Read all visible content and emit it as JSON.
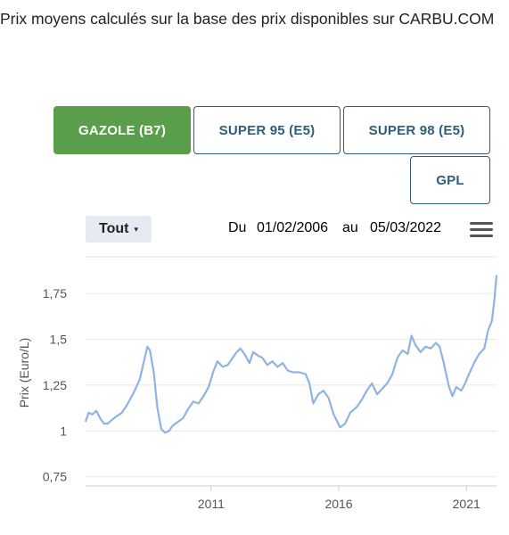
{
  "intro_text": "Prix moyens calculés sur la base des prix disponibles sur CARBU.COM",
  "fuel_tabs": [
    {
      "label": "GAZOLE (B7)",
      "active": true
    },
    {
      "label": "SUPER 95 (E5)",
      "active": false
    },
    {
      "label": "SUPER 98 (E5)",
      "active": false
    },
    {
      "label": "GPL",
      "active": false
    }
  ],
  "range_selector": {
    "label": "Tout",
    "caret": "▾"
  },
  "date_range": {
    "from_label": "Du",
    "from": "01/02/2006",
    "to_label": "au",
    "to": "05/03/2022"
  },
  "colors": {
    "line": "#8db4e2",
    "active_tab": "#5a9e4b",
    "tab_border": "#2f5e7a",
    "grid": "#e6e6e6"
  },
  "chart_data": {
    "type": "line",
    "title": "",
    "xlabel": "",
    "ylabel": "Prix (Euro/L)",
    "xlim": [
      2006.08,
      2022.18
    ],
    "ylim": [
      0.7,
      1.95
    ],
    "y_ticks": [
      0.75,
      1,
      1.25,
      1.5,
      1.75
    ],
    "y_tick_labels": [
      "0,75",
      "1",
      "1,25",
      "1,5",
      "1,75"
    ],
    "x_ticks": [
      2011,
      2016,
      2021
    ],
    "x_tick_labels": [
      "2011",
      "2016",
      "2021"
    ],
    "grid": true,
    "series": [
      {
        "values": [
          [
            2006.08,
            1.05
          ],
          [
            2006.2,
            1.1
          ],
          [
            2006.35,
            1.09
          ],
          [
            2006.5,
            1.11
          ],
          [
            2006.65,
            1.07
          ],
          [
            2006.8,
            1.04
          ],
          [
            2006.95,
            1.04
          ],
          [
            2007.1,
            1.06
          ],
          [
            2007.3,
            1.08
          ],
          [
            2007.5,
            1.1
          ],
          [
            2007.7,
            1.14
          ],
          [
            2007.85,
            1.18
          ],
          [
            2008.0,
            1.22
          ],
          [
            2008.2,
            1.28
          ],
          [
            2008.35,
            1.37
          ],
          [
            2008.5,
            1.46
          ],
          [
            2008.6,
            1.44
          ],
          [
            2008.75,
            1.32
          ],
          [
            2008.9,
            1.12
          ],
          [
            2009.05,
            1.01
          ],
          [
            2009.2,
            0.99
          ],
          [
            2009.35,
            1.0
          ],
          [
            2009.5,
            1.03
          ],
          [
            2009.7,
            1.05
          ],
          [
            2009.9,
            1.07
          ],
          [
            2010.1,
            1.12
          ],
          [
            2010.3,
            1.16
          ],
          [
            2010.5,
            1.15
          ],
          [
            2010.7,
            1.19
          ],
          [
            2010.9,
            1.24
          ],
          [
            2011.1,
            1.33
          ],
          [
            2011.25,
            1.38
          ],
          [
            2011.45,
            1.35
          ],
          [
            2011.65,
            1.36
          ],
          [
            2011.85,
            1.4
          ],
          [
            2012.0,
            1.43
          ],
          [
            2012.15,
            1.45
          ],
          [
            2012.35,
            1.41
          ],
          [
            2012.5,
            1.37
          ],
          [
            2012.65,
            1.43
          ],
          [
            2012.85,
            1.41
          ],
          [
            2013.0,
            1.4
          ],
          [
            2013.2,
            1.36
          ],
          [
            2013.4,
            1.38
          ],
          [
            2013.6,
            1.35
          ],
          [
            2013.8,
            1.37
          ],
          [
            2014.0,
            1.33
          ],
          [
            2014.2,
            1.32
          ],
          [
            2014.45,
            1.32
          ],
          [
            2014.7,
            1.31
          ],
          [
            2014.85,
            1.26
          ],
          [
            2015.0,
            1.15
          ],
          [
            2015.2,
            1.2
          ],
          [
            2015.4,
            1.22
          ],
          [
            2015.6,
            1.18
          ],
          [
            2015.8,
            1.09
          ],
          [
            2016.05,
            1.02
          ],
          [
            2016.25,
            1.04
          ],
          [
            2016.45,
            1.1
          ],
          [
            2016.7,
            1.13
          ],
          [
            2016.9,
            1.17
          ],
          [
            2017.1,
            1.22
          ],
          [
            2017.3,
            1.26
          ],
          [
            2017.5,
            1.2
          ],
          [
            2017.7,
            1.23
          ],
          [
            2017.9,
            1.26
          ],
          [
            2018.1,
            1.31
          ],
          [
            2018.3,
            1.4
          ],
          [
            2018.5,
            1.44
          ],
          [
            2018.7,
            1.42
          ],
          [
            2018.85,
            1.52
          ],
          [
            2019.0,
            1.47
          ],
          [
            2019.2,
            1.43
          ],
          [
            2019.4,
            1.46
          ],
          [
            2019.6,
            1.45
          ],
          [
            2019.8,
            1.48
          ],
          [
            2019.95,
            1.46
          ],
          [
            2020.1,
            1.38
          ],
          [
            2020.3,
            1.25
          ],
          [
            2020.45,
            1.19
          ],
          [
            2020.6,
            1.24
          ],
          [
            2020.8,
            1.22
          ],
          [
            2020.95,
            1.26
          ],
          [
            2021.1,
            1.31
          ],
          [
            2021.3,
            1.37
          ],
          [
            2021.5,
            1.42
          ],
          [
            2021.7,
            1.45
          ],
          [
            2021.85,
            1.55
          ],
          [
            2022.0,
            1.6
          ],
          [
            2022.1,
            1.72
          ],
          [
            2022.18,
            1.85
          ]
        ]
      }
    ]
  }
}
